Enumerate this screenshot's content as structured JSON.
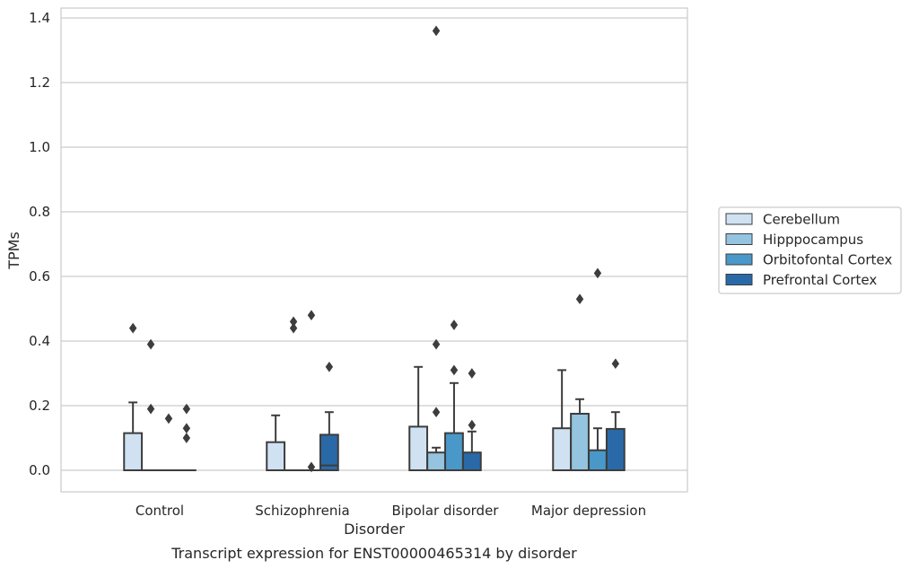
{
  "chart_data": {
    "type": "box",
    "xlabel": "Disorder",
    "ylabel": "TPMs",
    "caption": "Transcript expression for ENST00000465314 by disorder",
    "categories": [
      "Control",
      "Schizophrenia",
      "Bipolar disorder",
      "Major depression"
    ],
    "yticks": [
      "0.0",
      "0.2",
      "0.4",
      "0.6",
      "0.8",
      "1.0",
      "1.2",
      "1.4"
    ],
    "ylim": [
      -0.065,
      1.43
    ],
    "grid": "horizontal",
    "legend_position": "center-right",
    "series": [
      {
        "name": "Cerebellum",
        "color": "#d0e1f2",
        "boxes": [
          {
            "q1": 0,
            "median": 0,
            "q3": 0.115,
            "whisker_low": 0,
            "whisker_high": 0.21,
            "outliers": [
              0.44
            ]
          },
          {
            "q1": 0,
            "median": 0,
            "q3": 0.087,
            "whisker_low": 0,
            "whisker_high": 0.17,
            "outliers": []
          },
          {
            "q1": 0,
            "median": 0,
            "q3": 0.135,
            "whisker_low": 0,
            "whisker_high": 0.32,
            "outliers": []
          },
          {
            "q1": 0,
            "median": 0,
            "q3": 0.13,
            "whisker_low": 0,
            "whisker_high": 0.31,
            "outliers": []
          }
        ]
      },
      {
        "name": "Hipppocampus",
        "color": "#94c4df",
        "boxes": [
          {
            "q1": 0,
            "median": 0,
            "q3": 0,
            "whisker_low": 0,
            "whisker_high": 0,
            "outliers": [
              0.39,
              0.19
            ]
          },
          {
            "q1": 0,
            "median": 0,
            "q3": 0,
            "whisker_low": 0,
            "whisker_high": 0,
            "outliers": [
              0.46,
              0.44
            ]
          },
          {
            "q1": 0,
            "median": 0,
            "q3": 0.055,
            "whisker_low": 0,
            "whisker_high": 0.07,
            "outliers": [
              1.36,
              0.39,
              0.18
            ]
          },
          {
            "q1": 0,
            "median": 0,
            "q3": 0.175,
            "whisker_low": 0,
            "whisker_high": 0.22,
            "outliers": [
              0.53
            ]
          }
        ]
      },
      {
        "name": "Orbitofontal Cortex",
        "color": "#4a98c9",
        "boxes": [
          {
            "q1": 0,
            "median": 0,
            "q3": 0,
            "whisker_low": 0,
            "whisker_high": 0,
            "outliers": [
              0.16
            ]
          },
          {
            "q1": 0,
            "median": 0,
            "q3": 0,
            "whisker_low": 0,
            "whisker_high": 0,
            "outliers": [
              0.48,
              0.01
            ]
          },
          {
            "q1": 0,
            "median": 0,
            "q3": 0.115,
            "whisker_low": 0,
            "whisker_high": 0.27,
            "outliers": [
              0.45,
              0.31
            ]
          },
          {
            "q1": 0,
            "median": 0,
            "q3": 0.062,
            "whisker_low": 0,
            "whisker_high": 0.13,
            "outliers": [
              0.61
            ]
          }
        ]
      },
      {
        "name": "Prefrontal Cortex",
        "color": "#2a69a8",
        "boxes": [
          {
            "q1": 0,
            "median": 0,
            "q3": 0,
            "whisker_low": 0,
            "whisker_high": 0,
            "outliers": [
              0.19,
              0.13,
              0.1
            ]
          },
          {
            "q1": 0,
            "median": 0.015,
            "q3": 0.11,
            "whisker_low": 0,
            "whisker_high": 0.18,
            "outliers": [
              0.32
            ]
          },
          {
            "q1": 0,
            "median": 0,
            "q3": 0.055,
            "whisker_low": 0,
            "whisker_high": 0.12,
            "outliers": [
              0.3,
              0.14
            ]
          },
          {
            "q1": 0,
            "median": 0,
            "q3": 0.128,
            "whisker_low": 0,
            "whisker_high": 0.18,
            "outliers": [
              0.33
            ]
          }
        ]
      }
    ]
  }
}
